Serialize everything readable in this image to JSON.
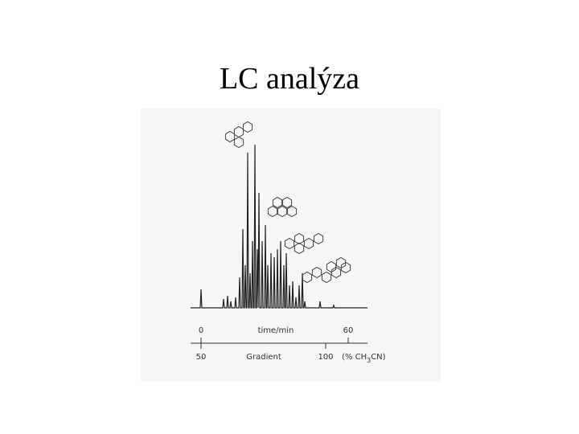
{
  "title": "LC analýza",
  "figure": {
    "time_axis": {
      "label": "time/min",
      "ticks": [
        0,
        60
      ]
    },
    "gradient_axis": {
      "label": "Gradient",
      "ticks": [
        50,
        100
      ],
      "unit": [
        "(% CH",
        "3",
        "CN)"
      ]
    }
  }
}
